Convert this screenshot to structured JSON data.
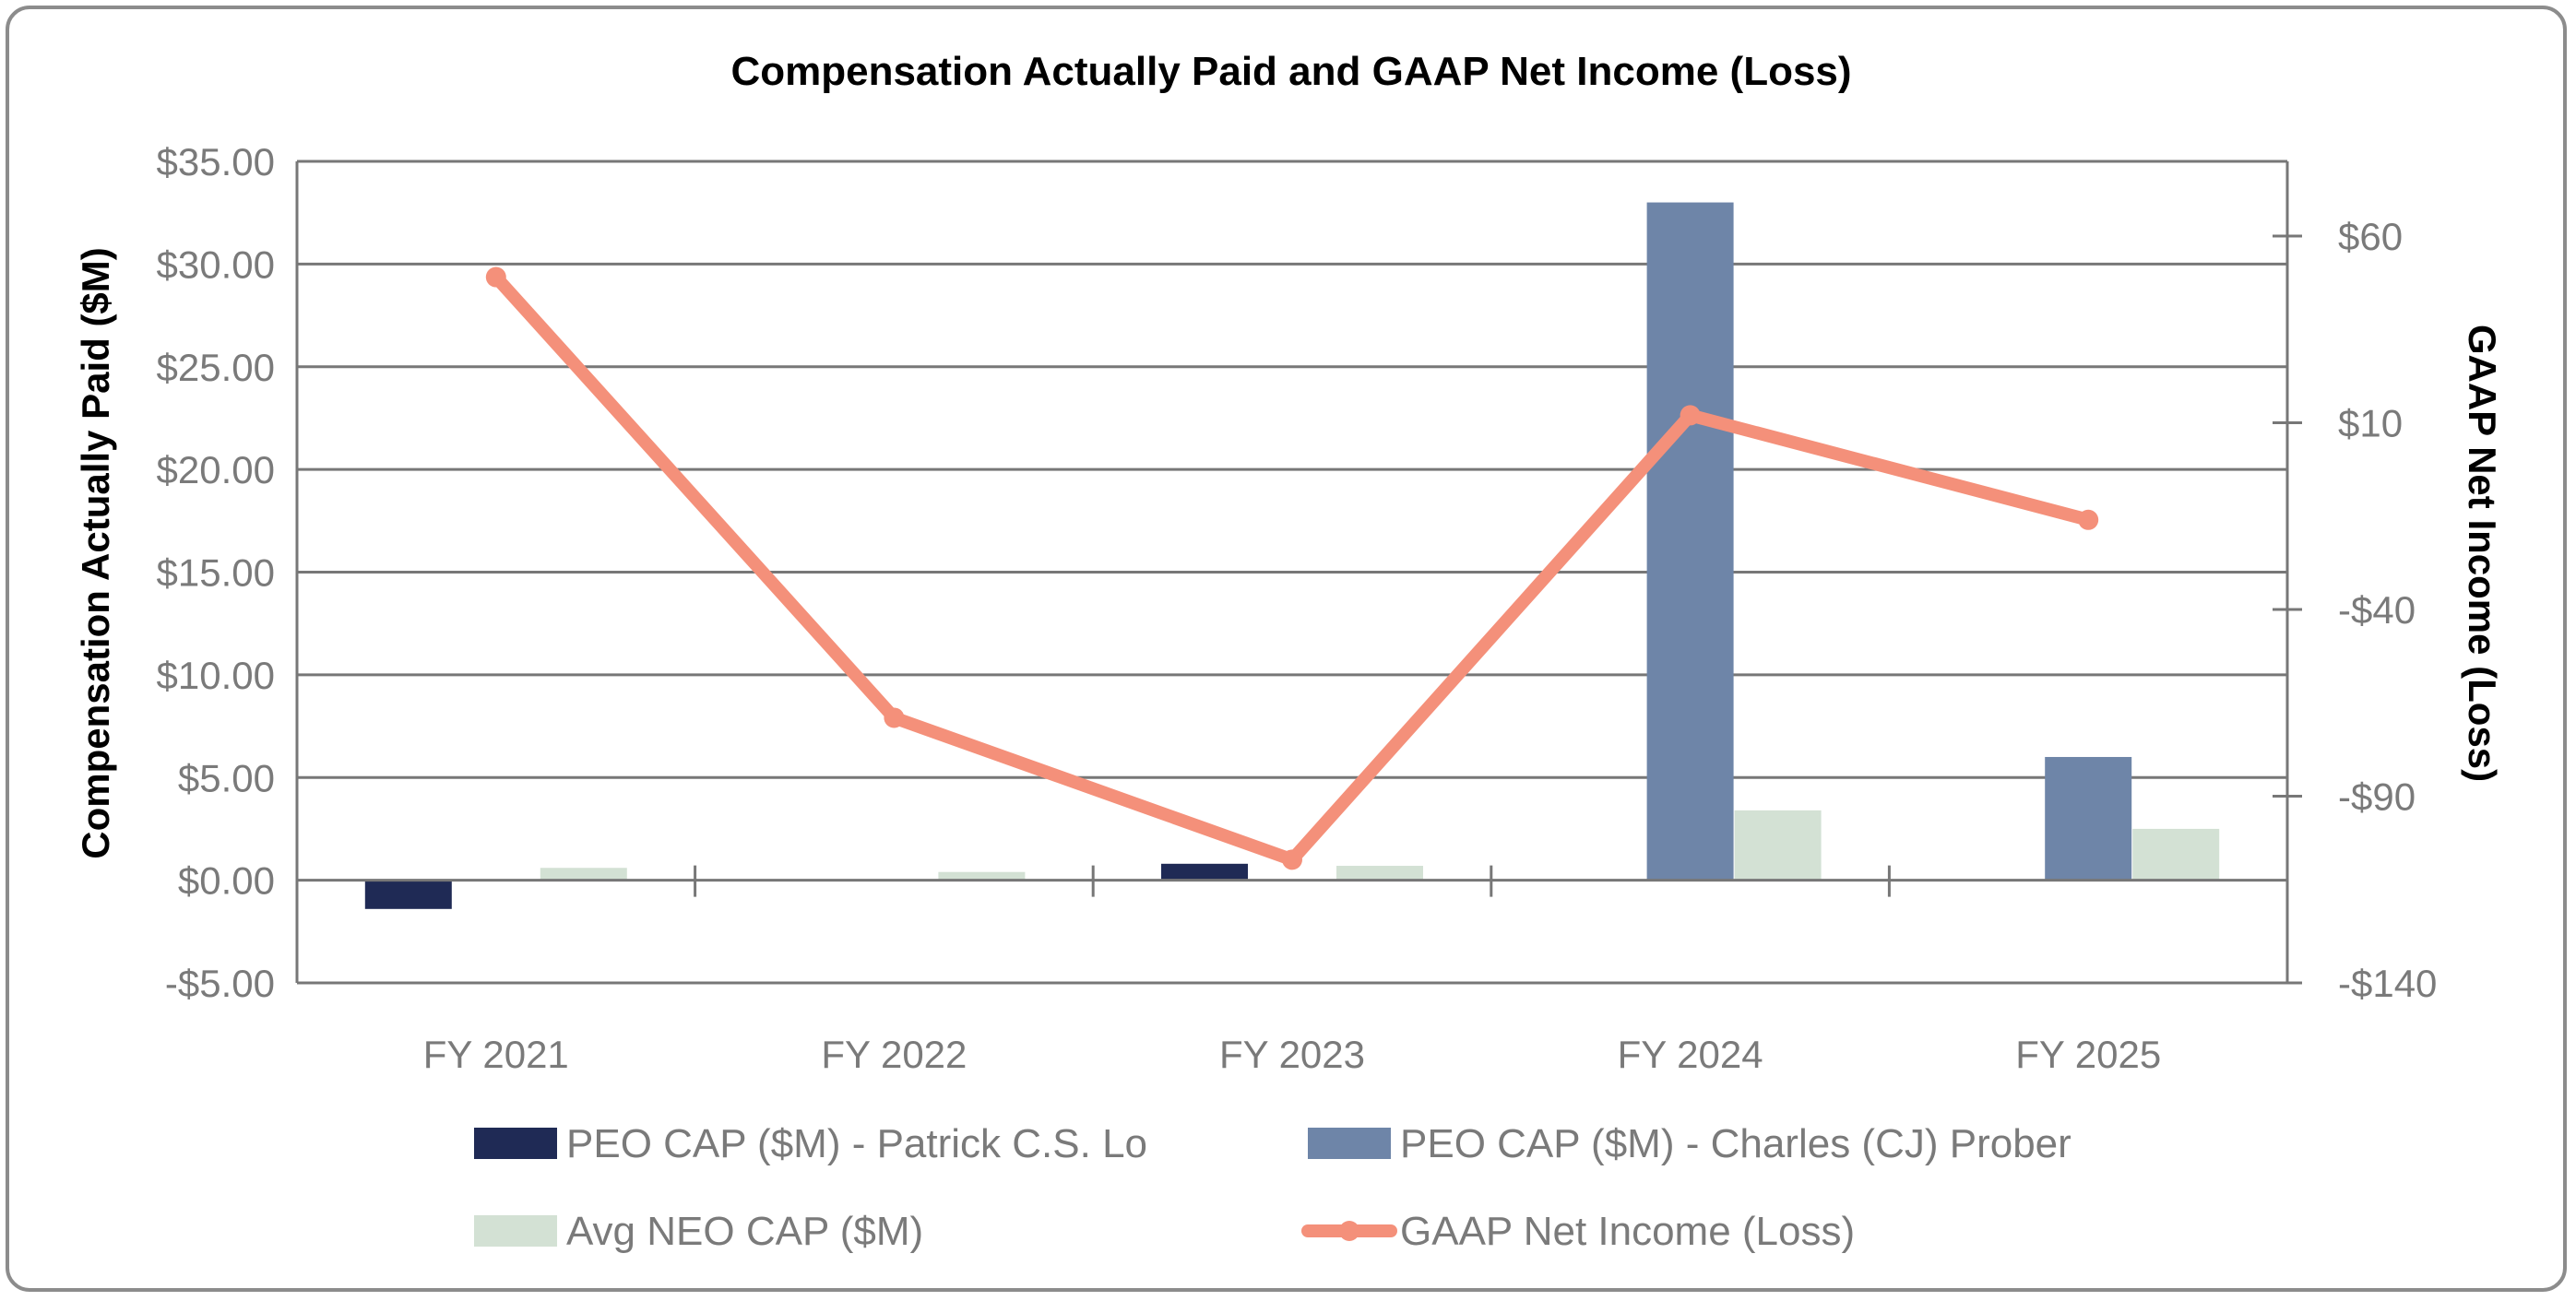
{
  "chart_data": {
    "type": "bar",
    "title": "Compensation Actually Paid and GAAP Net Income (Loss)",
    "categories": [
      "FY 2021",
      "FY 2022",
      "FY 2023",
      "FY 2024",
      "FY 2025"
    ],
    "y_left": {
      "label": "Compensation Actually Paid ($M)",
      "ylim": [
        -5,
        35
      ],
      "ticks": [
        35,
        30,
        25,
        20,
        15,
        10,
        5,
        0,
        -5
      ],
      "tick_labels": [
        "$35.00",
        "$30.00",
        "$25.00",
        "$20.00",
        "$15.00",
        "$10.00",
        "$5.00",
        "$0.00",
        "-$5.00"
      ]
    },
    "y_right": {
      "label": "GAAP Net Income (Loss)",
      "ylim": [
        -140,
        80
      ],
      "ticks": [
        60,
        10,
        -40,
        -90,
        -140
      ],
      "tick_labels": [
        "$60",
        "$10",
        "-$40",
        "-$90",
        "-$140"
      ]
    },
    "grid": true,
    "legend_position": "bottom",
    "series": [
      {
        "name": "PEO CAP ($M) - Patrick C.S. Lo",
        "type": "bar",
        "axis": "left",
        "color": "#1f2a55",
        "values": [
          -1.4,
          null,
          0.8,
          null,
          null
        ]
      },
      {
        "name": "PEO CAP ($M) - Charles (CJ) Prober",
        "type": "bar",
        "axis": "left",
        "color": "#6e85a8",
        "values": [
          null,
          null,
          null,
          33.0,
          6.0
        ]
      },
      {
        "name": "Avg NEO CAP ($M)",
        "type": "bar",
        "axis": "left",
        "color": "#d3e1d4",
        "values": [
          0.6,
          0.4,
          0.7,
          3.4,
          2.5
        ]
      },
      {
        "name": "GAAP Net Income (Loss)",
        "type": "line",
        "axis": "right",
        "color": "#f4907a",
        "values": [
          49,
          -69,
          -107,
          12,
          -16
        ]
      }
    ]
  }
}
